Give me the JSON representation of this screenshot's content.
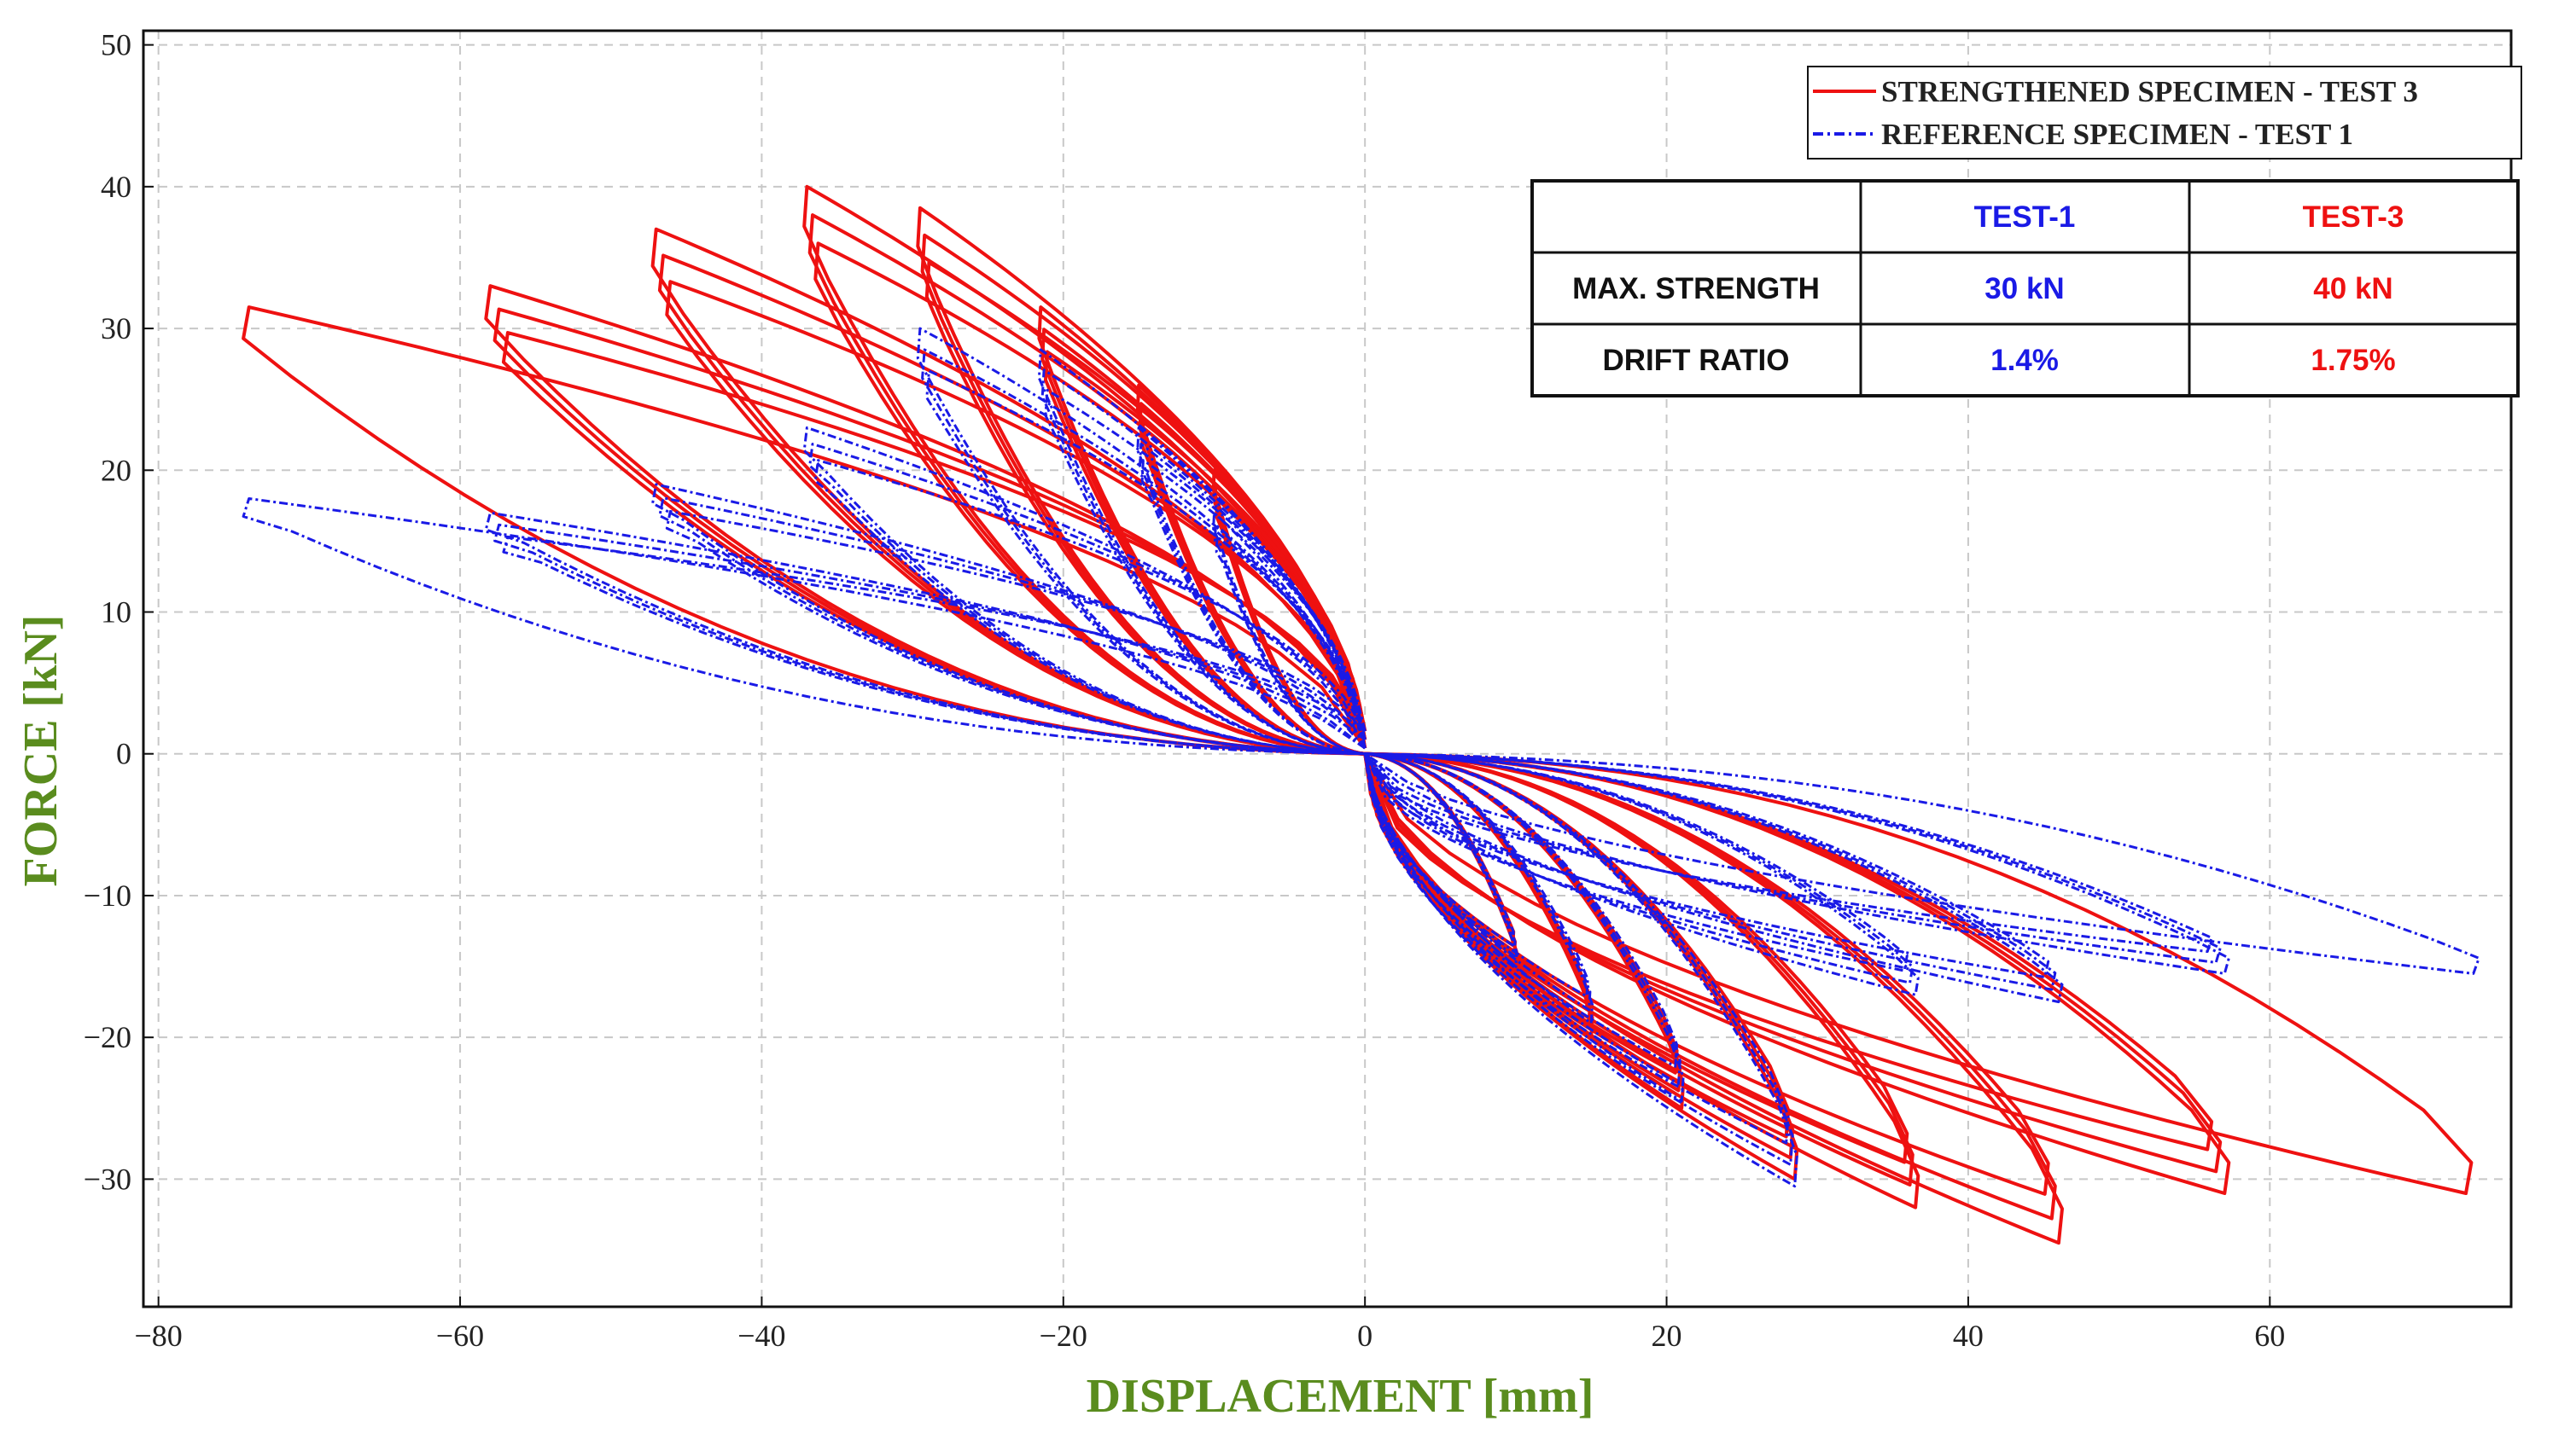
{
  "chart_data": {
    "type": "line",
    "title": "",
    "xlabel": "DISPLACEMENT [mm]",
    "ylabel": "FORCE [kN]",
    "xlim": [
      -81,
      76
    ],
    "ylim": [
      -39,
      51
    ],
    "xticks": [
      -80,
      -60,
      -40,
      -20,
      0,
      20,
      40,
      60
    ],
    "yticks": [
      50,
      40,
      30,
      20,
      10,
      0,
      -10,
      -20,
      -30
    ],
    "xtick_labels": [
      "−80",
      "−60",
      "−40",
      "−20",
      "0",
      "20",
      "40",
      "60"
    ],
    "ytick_labels": [
      "50",
      "40",
      "30",
      "20",
      "10",
      "0",
      "−10",
      "−20",
      "−30"
    ],
    "grid": true,
    "colors": {
      "strengthened": "#ee1111",
      "reference": "#1a1ae6",
      "axis_title": "#5a8c1e"
    },
    "legend": {
      "position": "top-right",
      "entries": [
        {
          "label": "STRENGTHENED SPECIMEN - TEST 3",
          "series": "strengthened",
          "style": "solid"
        },
        {
          "label": "REFERENCE SPECIMEN - TEST 1",
          "series": "reference",
          "style": "dash-dot"
        }
      ]
    },
    "summary_table": {
      "headers": [
        "",
        "TEST-1",
        "TEST-3"
      ],
      "rows": [
        {
          "label": "MAX. STRENGTH",
          "test1": "30 kN",
          "test3": "40 kN"
        },
        {
          "label": "DRIFT RATIO",
          "test1": "1.4%",
          "test3": "1.75%"
        }
      ]
    },
    "series": [
      {
        "name": "STRENGTHENED SPECIMEN - TEST 3",
        "key": "strengthened",
        "cycles": [
          {
            "dmax": 10,
            "fmax": 20,
            "dmin": -10,
            "fmin": -15,
            "repeat": 3
          },
          {
            "dmax": 15,
            "fmax": 26,
            "dmin": -15,
            "fmin": -20,
            "repeat": 3
          },
          {
            "dmax": 21,
            "fmax": 31.5,
            "dmin": -21.5,
            "fmin": -25,
            "repeat": 3
          },
          {
            "dmax": 28.5,
            "fmax": 38.5,
            "dmin": -29.5,
            "fmin": -30,
            "repeat": 3
          },
          {
            "dmax": 36.5,
            "fmax": 40,
            "dmin": -37,
            "fmin": -32,
            "repeat": 3
          },
          {
            "dmax": 46,
            "fmax": 37,
            "dmin": -47,
            "fmin": -34.5,
            "repeat": 3
          },
          {
            "dmax": 57,
            "fmax": 33,
            "dmin": -58,
            "fmin": -31,
            "repeat": 3
          },
          {
            "dmax": 73,
            "fmax": 31.5,
            "dmin": -74,
            "fmin": -31,
            "repeat": 1
          }
        ]
      },
      {
        "name": "REFERENCE SPECIMEN - TEST 1",
        "key": "reference",
        "cycles": [
          {
            "dmax": 10,
            "fmax": 17,
            "dmin": -10,
            "fmin": -15,
            "repeat": 3
          },
          {
            "dmax": 15,
            "fmax": 23,
            "dmin": -15,
            "fmin": -19,
            "repeat": 3
          },
          {
            "dmax": 21,
            "fmax": 28.5,
            "dmin": -21.5,
            "fmin": -24.5,
            "repeat": 3
          },
          {
            "dmax": 28.5,
            "fmax": 30,
            "dmin": -29.5,
            "fmin": -30.5,
            "repeat": 3
          },
          {
            "dmax": 36.5,
            "fmax": 23,
            "dmin": -37,
            "fmin": -17,
            "repeat": 3
          },
          {
            "dmax": 46,
            "fmax": 19,
            "dmin": -47,
            "fmin": -17.5,
            "repeat": 3
          },
          {
            "dmax": 57,
            "fmax": 17,
            "dmin": -58,
            "fmin": -15.5,
            "repeat": 3
          },
          {
            "dmax": 73.5,
            "fmax": 18,
            "dmin": -74,
            "fmin": -15.5,
            "repeat": 1
          }
        ]
      }
    ]
  }
}
